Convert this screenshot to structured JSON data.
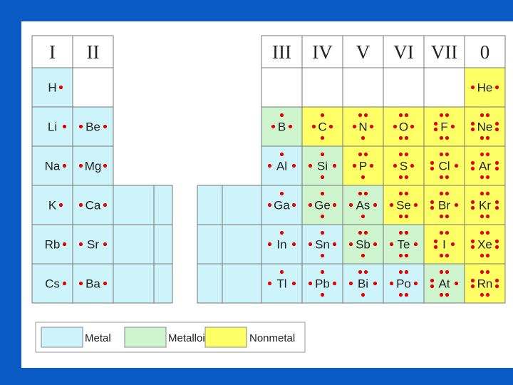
{
  "colors": {
    "background": "#0a5cc4",
    "metal": "#ccf4fa",
    "metalloid": "#cff5cf",
    "nonmetal": "#ffff66",
    "empty": "#ffffff",
    "electron": "#e60000",
    "gridline": "#777777"
  },
  "groups": [
    "I",
    "II",
    "III",
    "IV",
    "V",
    "VI",
    "VII",
    "0"
  ],
  "elements": [
    {
      "symbol": "H",
      "group": 1,
      "period": 1,
      "type": "metal",
      "electrons": 1
    },
    {
      "symbol": "He",
      "group": 8,
      "period": 1,
      "type": "nonmetal",
      "electrons": 2
    },
    {
      "symbol": "Li",
      "group": 1,
      "period": 2,
      "type": "metal",
      "electrons": 1
    },
    {
      "symbol": "Be",
      "group": 2,
      "period": 2,
      "type": "metal",
      "electrons": 2
    },
    {
      "symbol": "B",
      "group": 3,
      "period": 2,
      "type": "metalloid",
      "electrons": 3
    },
    {
      "symbol": "C",
      "group": 4,
      "period": 2,
      "type": "nonmetal",
      "electrons": 4
    },
    {
      "symbol": "N",
      "group": 5,
      "period": 2,
      "type": "nonmetal",
      "electrons": 5
    },
    {
      "symbol": "O",
      "group": 6,
      "period": 2,
      "type": "nonmetal",
      "electrons": 6
    },
    {
      "symbol": "F",
      "group": 7,
      "period": 2,
      "type": "nonmetal",
      "electrons": 7
    },
    {
      "symbol": "Ne",
      "group": 8,
      "period": 2,
      "type": "nonmetal",
      "electrons": 8
    },
    {
      "symbol": "Na",
      "group": 1,
      "period": 3,
      "type": "metal",
      "electrons": 1
    },
    {
      "symbol": "Mg",
      "group": 2,
      "period": 3,
      "type": "metal",
      "electrons": 2
    },
    {
      "symbol": "Al",
      "group": 3,
      "period": 3,
      "type": "metal",
      "electrons": 3
    },
    {
      "symbol": "Si",
      "group": 4,
      "period": 3,
      "type": "metalloid",
      "electrons": 4
    },
    {
      "symbol": "P",
      "group": 5,
      "period": 3,
      "type": "nonmetal",
      "electrons": 5
    },
    {
      "symbol": "S",
      "group": 6,
      "period": 3,
      "type": "nonmetal",
      "electrons": 6
    },
    {
      "symbol": "Cl",
      "group": 7,
      "period": 3,
      "type": "nonmetal",
      "electrons": 7
    },
    {
      "symbol": "Ar",
      "group": 8,
      "period": 3,
      "type": "nonmetal",
      "electrons": 8
    },
    {
      "symbol": "K",
      "group": 1,
      "period": 4,
      "type": "metal",
      "electrons": 1
    },
    {
      "symbol": "Ca",
      "group": 2,
      "period": 4,
      "type": "metal",
      "electrons": 2
    },
    {
      "symbol": "Ga",
      "group": 3,
      "period": 4,
      "type": "metal",
      "electrons": 3
    },
    {
      "symbol": "Ge",
      "group": 4,
      "period": 4,
      "type": "metalloid",
      "electrons": 4
    },
    {
      "symbol": "As",
      "group": 5,
      "period": 4,
      "type": "metalloid",
      "electrons": 5
    },
    {
      "symbol": "Se",
      "group": 6,
      "period": 4,
      "type": "nonmetal",
      "electrons": 6
    },
    {
      "symbol": "Br",
      "group": 7,
      "period": 4,
      "type": "nonmetal",
      "electrons": 7
    },
    {
      "symbol": "Kr",
      "group": 8,
      "period": 4,
      "type": "nonmetal",
      "electrons": 8
    },
    {
      "symbol": "Rb",
      "group": 1,
      "period": 5,
      "type": "metal",
      "electrons": 1
    },
    {
      "symbol": "Sr",
      "group": 2,
      "period": 5,
      "type": "metal",
      "electrons": 2
    },
    {
      "symbol": "In",
      "group": 3,
      "period": 5,
      "type": "metal",
      "electrons": 3
    },
    {
      "symbol": "Sn",
      "group": 4,
      "period": 5,
      "type": "metal",
      "electrons": 4
    },
    {
      "symbol": "Sb",
      "group": 5,
      "period": 5,
      "type": "metalloid",
      "electrons": 5
    },
    {
      "symbol": "Te",
      "group": 6,
      "period": 5,
      "type": "metalloid",
      "electrons": 6
    },
    {
      "symbol": "I",
      "group": 7,
      "period": 5,
      "type": "nonmetal",
      "electrons": 7
    },
    {
      "symbol": "Xe",
      "group": 8,
      "period": 5,
      "type": "nonmetal",
      "electrons": 8
    },
    {
      "symbol": "Cs",
      "group": 1,
      "period": 6,
      "type": "metal",
      "electrons": 1
    },
    {
      "symbol": "Ba",
      "group": 2,
      "period": 6,
      "type": "metal",
      "electrons": 2
    },
    {
      "symbol": "Tl",
      "group": 3,
      "period": 6,
      "type": "metal",
      "electrons": 3
    },
    {
      "symbol": "Pb",
      "group": 4,
      "period": 6,
      "type": "metal",
      "electrons": 4
    },
    {
      "symbol": "Bi",
      "group": 5,
      "period": 6,
      "type": "metal",
      "electrons": 5
    },
    {
      "symbol": "Po",
      "group": 6,
      "period": 6,
      "type": "metal",
      "electrons": 6
    },
    {
      "symbol": "At",
      "group": 7,
      "period": 6,
      "type": "metalloid",
      "electrons": 7
    },
    {
      "symbol": "Rn",
      "group": 8,
      "period": 6,
      "type": "nonmetal",
      "electrons": 8
    }
  ],
  "legend": [
    {
      "type": "metal",
      "label": "Metal"
    },
    {
      "type": "metalloid",
      "label": "Metalloid"
    },
    {
      "type": "nonmetal",
      "label": "Nonmetal"
    }
  ]
}
